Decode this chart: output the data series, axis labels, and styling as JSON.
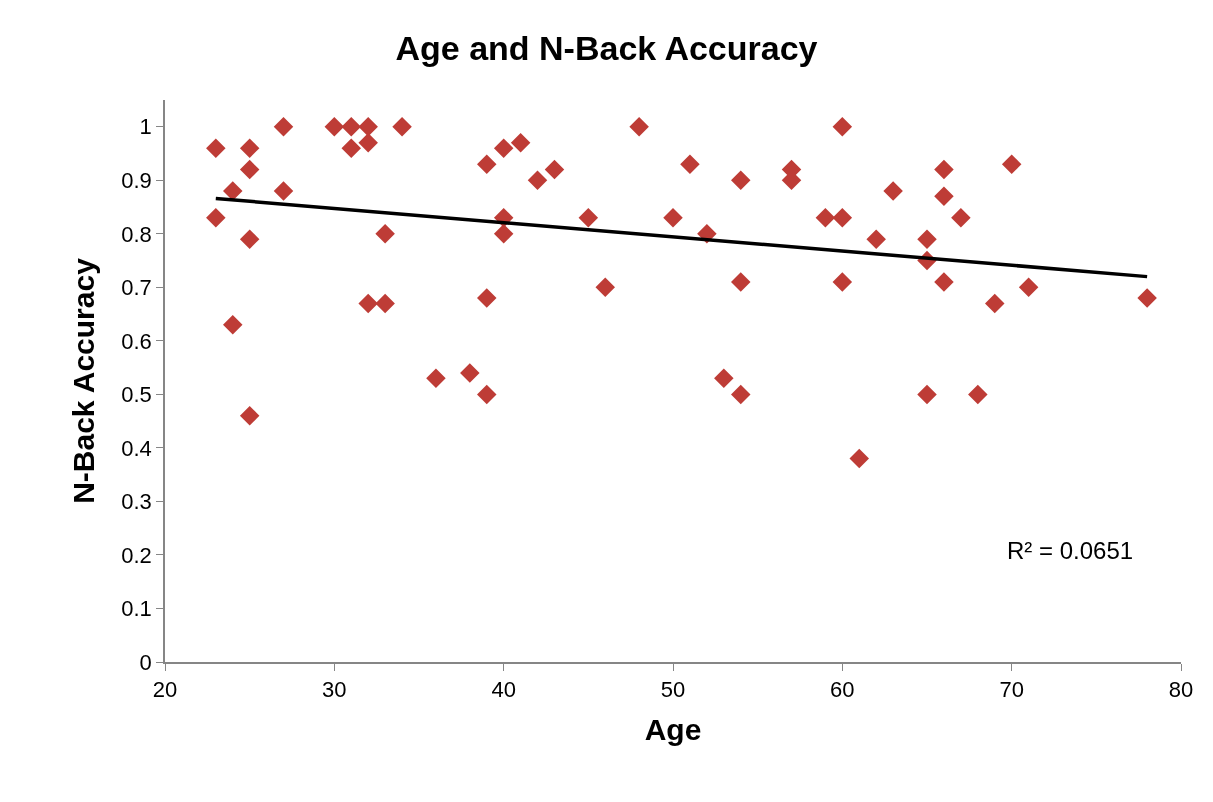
{
  "chart_data": {
    "type": "scatter",
    "title": "Age and N-Back Accuracy",
    "xlabel": "Age",
    "ylabel": "N-Back Accuracy",
    "xlim": [
      20,
      80
    ],
    "xticks": [
      20,
      30,
      40,
      50,
      60,
      70,
      80
    ],
    "ylim": [
      0,
      1.05
    ],
    "yticks": [
      0,
      0.1,
      0.2,
      0.3,
      0.4,
      0.5,
      0.6,
      0.7,
      0.8,
      0.9,
      1
    ],
    "grid": false,
    "legend": false,
    "annotations": [
      "R² = 0.0651"
    ],
    "series": [
      {
        "marker": "diamond",
        "color": "#be3c36",
        "x": [
          23,
          23,
          24,
          24,
          25,
          25,
          25,
          25,
          27,
          27,
          30,
          31,
          31,
          32,
          32,
          32,
          33,
          33,
          34,
          36,
          38,
          39,
          39,
          39,
          40,
          40,
          40,
          41,
          42,
          43,
          45,
          46,
          48,
          50,
          51,
          52,
          53,
          54,
          54,
          54,
          57,
          57,
          59,
          60,
          60,
          60,
          61,
          62,
          63,
          65,
          65,
          65,
          66,
          66,
          66,
          67,
          68,
          69,
          70,
          71,
          78
        ],
        "values": [
          0.96,
          0.83,
          0.88,
          0.63,
          0.96,
          0.92,
          0.79,
          0.46,
          1.0,
          0.88,
          1.0,
          1.0,
          0.96,
          1.0,
          0.97,
          0.67,
          0.8,
          0.67,
          1.0,
          0.53,
          0.54,
          0.93,
          0.68,
          0.5,
          0.96,
          0.83,
          0.8,
          0.97,
          0.9,
          0.92,
          0.83,
          0.7,
          1.0,
          0.83,
          0.93,
          0.8,
          0.53,
          0.9,
          0.71,
          0.5,
          0.92,
          0.9,
          0.83,
          1.0,
          0.83,
          0.71,
          0.38,
          0.79,
          0.88,
          0.79,
          0.75,
          0.5,
          0.92,
          0.87,
          0.71,
          0.83,
          0.5,
          0.67,
          0.93,
          0.7,
          0.68
        ]
      },
      {
        "type": "line",
        "marker": "none",
        "color": "#000000",
        "x": [
          23,
          78
        ],
        "values": [
          0.866,
          0.72
        ]
      }
    ]
  }
}
